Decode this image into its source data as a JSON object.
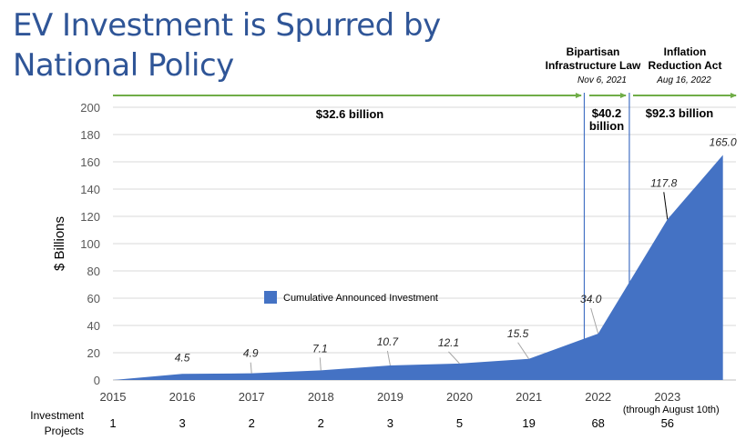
{
  "page": {
    "title_line1": "EV Investment is Spurred by",
    "title_line2": "National Policy"
  },
  "annotations": {
    "bil": {
      "title_line1": "Bipartisan",
      "title_line2": "Infrastructure Law",
      "date": "Nov 6, 2021"
    },
    "ira": {
      "title_line1": "Inflation",
      "title_line2": "Reduction Act",
      "date": "Aug 16, 2022"
    },
    "segments": [
      {
        "label_line1": "$32.6 billion",
        "label_line2": ""
      },
      {
        "label_line1": "$40.2",
        "label_line2": "billion"
      },
      {
        "label_line1": "$92.3 billion",
        "label_line2": ""
      }
    ],
    "colors": {
      "arrow": "#70ad47",
      "policy_line": "#4472c4"
    }
  },
  "projects": {
    "label_line1": "Investment",
    "label_line2": "Projects",
    "values": [
      "1",
      "3",
      "2",
      "2",
      "3",
      "5",
      "19",
      "68",
      "56"
    ]
  },
  "chart_data": {
    "type": "area",
    "title": "EV Investment is Spurred by National Policy",
    "xlabel": "",
    "ylabel": "$ Billions",
    "ylim": [
      0,
      200
    ],
    "yticks": [
      "0",
      "20",
      "40",
      "60",
      "80",
      "100",
      "120",
      "140",
      "160",
      "180",
      "200"
    ],
    "categories": [
      "2015",
      "2016",
      "2017",
      "2018",
      "2019",
      "2020",
      "2021",
      "2022",
      "2023"
    ],
    "category_sublabels": {
      "2023": "(through August 10th)"
    },
    "grid": true,
    "legend": {
      "position": "center-left",
      "entries": [
        "Cumulative Announced Investment"
      ]
    },
    "series": [
      {
        "name": "Cumulative Announced Investment",
        "color": "#4472c4",
        "points": [
          {
            "x": 0,
            "value": 0,
            "label": ""
          },
          {
            "x": 1,
            "value": 4.5,
            "label": "4.5"
          },
          {
            "x": 2,
            "value": 4.9,
            "label": "4.9"
          },
          {
            "x": 3,
            "value": 7.1,
            "label": "7.1"
          },
          {
            "x": 4,
            "value": 10.7,
            "label": "10.7"
          },
          {
            "x": 5,
            "value": 12.1,
            "label": "12.1"
          },
          {
            "x": 6,
            "value": 15.5,
            "label": "15.5"
          },
          {
            "x": 7,
            "value": 34.0,
            "label": "34.0"
          },
          {
            "x": 8,
            "value": 117.8,
            "label": "117.8"
          },
          {
            "x": 8.8,
            "value": 165.0,
            "label": "165.0"
          }
        ]
      }
    ],
    "policy_markers": [
      {
        "name": "Bipartisan Infrastructure Law",
        "date": "Nov 6, 2021",
        "x": 6.8
      },
      {
        "name": "Inflation Reduction Act",
        "date": "Aug 16, 2022",
        "x": 7.45
      }
    ]
  }
}
